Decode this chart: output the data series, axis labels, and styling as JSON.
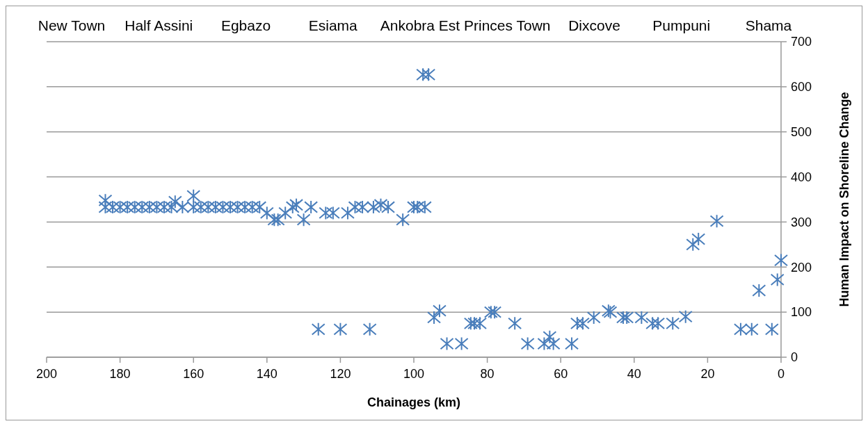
{
  "chart_data": {
    "type": "scatter",
    "xlabel": "Chainages (km)",
    "ylabel": "Human Impact on Shoreline Change",
    "xlim": [
      200,
      0
    ],
    "xticks": [
      200,
      180,
      160,
      140,
      120,
      100,
      80,
      60,
      40,
      20,
      0
    ],
    "ylim": [
      0,
      700
    ],
    "yticks": [
      0,
      100,
      200,
      300,
      400,
      500,
      600,
      700
    ],
    "grid": "y",
    "marker": "cross",
    "annotations": [
      "New Town",
      "Half Assini",
      "Egbazo",
      "Esiama",
      "Ankobra Est",
      "Princes Town",
      "Dixcove",
      "Pumpuni",
      "Shama"
    ],
    "series": [
      {
        "color": "#4a7ebb",
        "x": [
          184,
          184,
          182,
          180,
          178,
          176,
          174,
          172,
          170,
          168,
          166,
          165,
          163,
          160,
          160,
          158,
          156,
          154,
          152,
          150,
          148,
          146,
          144,
          142,
          140,
          138,
          137,
          135,
          133,
          132,
          130,
          128,
          124,
          122,
          118,
          116,
          114,
          111,
          109,
          107,
          103,
          100,
          99,
          97,
          97.5,
          96,
          126,
          120,
          112,
          94.5,
          93,
          91,
          87,
          84.5,
          83.5,
          82,
          79,
          78,
          72.5,
          69,
          64.5,
          63,
          62,
          57,
          55.5,
          54,
          51,
          47,
          46.5,
          43,
          42,
          38,
          35,
          33.5,
          29.5,
          26,
          24,
          22.5,
          17.5,
          11,
          8,
          6,
          2.5,
          1,
          0
        ],
        "values": [
          348,
          333,
          333,
          333,
          333,
          333,
          333,
          333,
          333,
          333,
          333,
          345,
          333,
          358,
          333,
          333,
          333,
          333,
          333,
          333,
          333,
          333,
          333,
          333,
          320,
          305,
          305,
          320,
          333,
          338,
          305,
          333,
          320,
          320,
          320,
          333,
          333,
          333,
          338,
          333,
          305,
          333,
          333,
          333,
          627,
          627,
          62,
          62,
          62,
          88,
          103,
          30,
          30,
          75,
          75,
          75,
          100,
          100,
          75,
          30,
          30,
          45,
          30,
          30,
          75,
          75,
          88,
          103,
          100,
          88,
          88,
          88,
          75,
          75,
          75,
          90,
          250,
          262,
          302,
          62,
          62,
          148,
          62,
          172,
          215
        ]
      }
    ]
  }
}
